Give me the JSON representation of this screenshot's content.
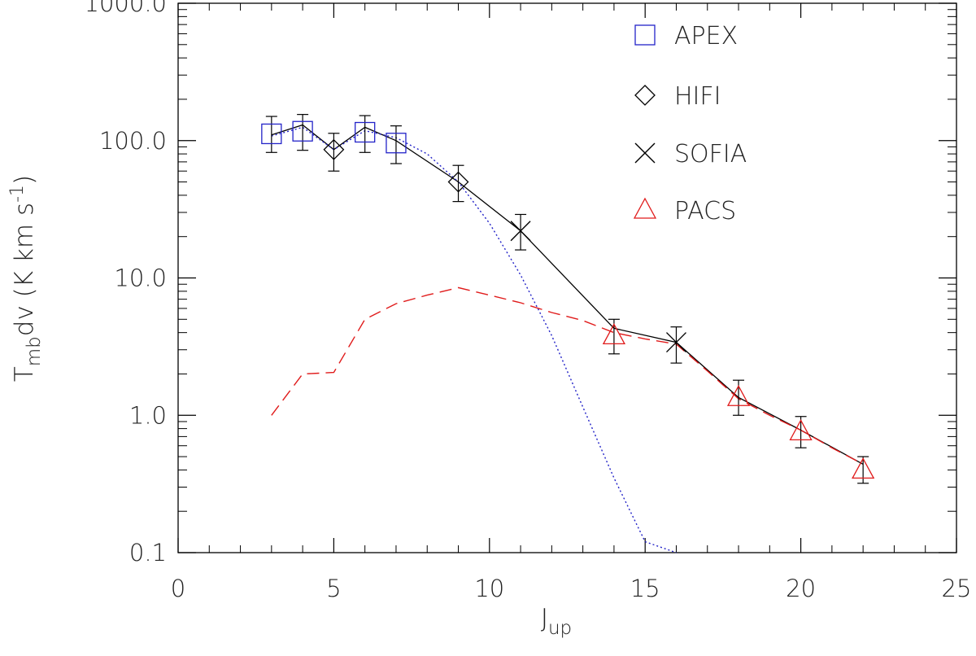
{
  "chart_data": {
    "type": "scatter",
    "title": "",
    "xlabel": {
      "main": "J",
      "sub": "up"
    },
    "ylabel": {
      "main": "T",
      "sub": "mb",
      "rest": "dv (K km s",
      "sup": "-1",
      "close": ")"
    },
    "xlim": [
      0,
      25
    ],
    "ylim": [
      0.1,
      1000
    ],
    "yscale": "log",
    "xticks": [
      0,
      5,
      10,
      15,
      20,
      25
    ],
    "xtick_labels": [
      "0",
      "5",
      "10",
      "15",
      "20",
      "25"
    ],
    "yticks": [
      0.1,
      1,
      10,
      100,
      1000
    ],
    "ytick_labels": [
      "0.1",
      "1.0",
      "10.0",
      "100.0",
      "1000.0"
    ],
    "grid": false,
    "legend_position": "top-right",
    "colors": {
      "apex": "#2323c8",
      "pacs": "#e01b1b",
      "black": "#000000"
    },
    "series": [
      {
        "name": "APEX",
        "marker": "square",
        "color": "#2323c8",
        "points": [
          {
            "x": 3,
            "y": 112,
            "lo": 82,
            "hi": 150
          },
          {
            "x": 4,
            "y": 117,
            "lo": 85,
            "hi": 155
          },
          {
            "x": 6,
            "y": 115,
            "lo": 82,
            "hi": 152
          },
          {
            "x": 7,
            "y": 96,
            "lo": 68,
            "hi": 128
          }
        ]
      },
      {
        "name": "HIFI",
        "marker": "diamond",
        "color": "#000000",
        "points": [
          {
            "x": 5,
            "y": 86,
            "lo": 60,
            "hi": 113
          },
          {
            "x": 9,
            "y": 50,
            "lo": 36,
            "hi": 66
          }
        ]
      },
      {
        "name": "SOFIA",
        "marker": "cross",
        "color": "#000000",
        "points": [
          {
            "x": 11,
            "y": 22,
            "lo": 16,
            "hi": 29
          },
          {
            "x": 16,
            "y": 3.4,
            "lo": 2.4,
            "hi": 4.4
          }
        ]
      },
      {
        "name": "PACS",
        "marker": "triangle",
        "color": "#e01b1b",
        "points": [
          {
            "x": 14,
            "y": 3.8,
            "lo": 2.8,
            "hi": 5.0
          },
          {
            "x": 18,
            "y": 1.35,
            "lo": 1.0,
            "hi": 1.8
          },
          {
            "x": 20,
            "y": 0.76,
            "lo": 0.58,
            "hi": 0.98
          },
          {
            "x": 22,
            "y": 0.4,
            "lo": 0.32,
            "hi": 0.5
          }
        ]
      }
    ],
    "lines": [
      {
        "style": "solid",
        "color": "#000000",
        "x": [
          3,
          4,
          5,
          6,
          7,
          9,
          11,
          14,
          16,
          18,
          20,
          22
        ],
        "y": [
          110,
          130,
          86,
          125,
          100,
          50,
          22,
          4.3,
          3.4,
          1.35,
          0.78,
          0.44
        ]
      },
      {
        "style": "dotted",
        "color": "#2323c8",
        "x": [
          3,
          4,
          5,
          6,
          7,
          8,
          9,
          10,
          11,
          12,
          13,
          14,
          15,
          16
        ],
        "y": [
          108,
          125,
          86,
          118,
          105,
          80,
          50,
          25,
          10.5,
          3.8,
          1.15,
          0.35,
          0.12,
          0.1
        ]
      },
      {
        "style": "dashed",
        "color": "#e01b1b",
        "x": [
          3,
          4,
          5,
          6,
          7,
          8,
          9,
          10,
          11,
          12,
          13,
          14,
          15,
          16,
          17,
          18,
          19,
          20,
          21,
          22
        ],
        "y": [
          1.0,
          2.0,
          2.05,
          5.0,
          6.5,
          7.5,
          8.5,
          7.5,
          6.6,
          5.6,
          4.9,
          4.0,
          3.6,
          3.3,
          2.1,
          1.32,
          1.0,
          0.78,
          0.58,
          0.44
        ]
      }
    ]
  }
}
